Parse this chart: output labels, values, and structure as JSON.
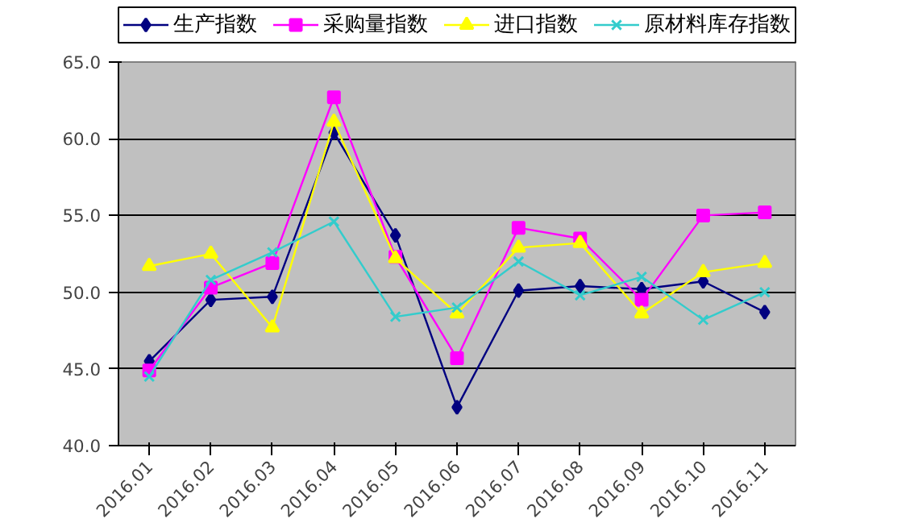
{
  "chart_data": {
    "type": "line",
    "categories": [
      "2016.01",
      "2016.02",
      "2016.03",
      "2016.04",
      "2016.05",
      "2016.06",
      "2016.07",
      "2016.08",
      "2016.09",
      "2016.10",
      "2016.11"
    ],
    "series": [
      {
        "name": "生产指数",
        "color": "#000080",
        "marker": "diamond",
        "values": [
          45.5,
          49.5,
          49.7,
          60.4,
          53.7,
          42.5,
          50.1,
          50.4,
          50.2,
          50.7,
          48.7
        ]
      },
      {
        "name": "采购量指数",
        "color": "#ff00ff",
        "marker": "square",
        "values": [
          44.9,
          50.3,
          51.9,
          62.7,
          52.3,
          45.7,
          54.2,
          53.5,
          49.5,
          55.0,
          55.2
        ]
      },
      {
        "name": "进口指数",
        "color": "#ffff00",
        "marker": "triangle",
        "values": [
          51.7,
          52.5,
          47.7,
          61.1,
          52.2,
          48.6,
          52.9,
          53.2,
          48.6,
          51.3,
          51.9
        ]
      },
      {
        "name": "原材料库存指数",
        "color": "#33cccc",
        "marker": "cross",
        "values": [
          44.5,
          50.8,
          52.6,
          54.6,
          48.4,
          49.0,
          52.0,
          49.8,
          51.0,
          48.2,
          50.0
        ]
      }
    ],
    "ylim": [
      40,
      65
    ],
    "yticks": [
      {
        "value": 40,
        "label": "40.0"
      },
      {
        "value": 45,
        "label": "45.0"
      },
      {
        "value": 50,
        "label": "50.0"
      },
      {
        "value": 55,
        "label": "55.0"
      },
      {
        "value": 60,
        "label": "60.0"
      },
      {
        "value": 65,
        "label": "65.0"
      }
    ],
    "grid": "y",
    "legend": "top",
    "line_style": "solid"
  }
}
